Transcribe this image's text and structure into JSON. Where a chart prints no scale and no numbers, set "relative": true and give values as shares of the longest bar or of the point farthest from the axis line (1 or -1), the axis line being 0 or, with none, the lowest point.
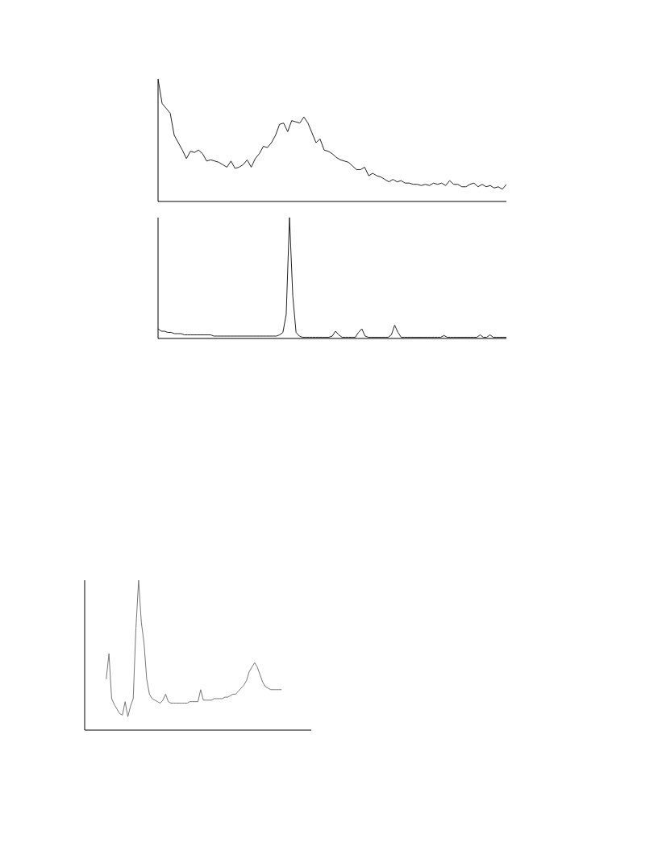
{
  "chart_data": [
    {
      "type": "line",
      "relative": true,
      "categories": [
        null,
        null,
        null,
        null,
        null,
        null,
        null,
        null,
        null,
        null,
        null,
        null,
        null,
        null,
        null,
        null,
        null,
        null,
        null,
        null,
        null,
        null,
        null,
        null,
        null,
        null,
        null,
        null,
        null,
        null,
        null,
        null,
        null,
        null,
        null,
        null,
        null,
        null,
        null,
        null,
        null,
        null,
        null,
        null,
        null,
        null,
        null,
        null,
        null,
        null,
        null,
        null,
        null,
        null,
        null,
        null,
        null,
        null,
        null,
        null,
        null,
        null,
        null,
        null,
        null,
        null,
        null,
        null,
        null,
        null,
        null,
        null,
        null,
        null,
        null,
        null,
        null,
        null,
        null,
        null,
        null,
        null,
        null,
        null,
        null,
        null,
        null
      ],
      "series": [
        {
          "color": "#222222",
          "values": [
            1.0,
            0.8,
            0.76,
            0.72,
            0.54,
            0.48,
            0.42,
            0.35,
            0.41,
            0.4,
            0.42,
            0.39,
            0.33,
            0.34,
            0.33,
            0.32,
            0.3,
            0.28,
            0.33,
            0.27,
            0.28,
            0.3,
            0.34,
            0.28,
            0.35,
            0.39,
            0.45,
            0.44,
            0.48,
            0.54,
            0.63,
            0.64,
            0.57,
            0.66,
            0.65,
            0.64,
            0.69,
            0.64,
            0.56,
            0.48,
            0.51,
            0.42,
            0.41,
            0.39,
            0.36,
            0.34,
            0.33,
            0.32,
            0.29,
            0.26,
            0.26,
            0.28,
            0.21,
            0.23,
            0.21,
            0.2,
            0.18,
            0.16,
            0.18,
            0.16,
            0.17,
            0.15,
            0.15,
            0.14,
            0.14,
            0.13,
            0.14,
            0.13,
            0.15,
            0.14,
            0.15,
            0.13,
            0.17,
            0.14,
            0.14,
            0.12,
            0.12,
            0.14,
            0.15,
            0.12,
            0.14,
            0.12,
            0.13,
            0.11,
            0.12,
            0.1,
            0.14
          ]
        }
      ]
    },
    {
      "type": "line",
      "relative": true,
      "categories": [
        null,
        null,
        null,
        null,
        null,
        null,
        null,
        null,
        null,
        null,
        null,
        null,
        null,
        null,
        null,
        null,
        null,
        null,
        null,
        null,
        null,
        null,
        null,
        null,
        null,
        null,
        null,
        null,
        null,
        null,
        null,
        null,
        null,
        null,
        null,
        null,
        null,
        null,
        null,
        null,
        null,
        null,
        null,
        null,
        null,
        null,
        null,
        null,
        null,
        null,
        null,
        null,
        null,
        null,
        null,
        null,
        null,
        null,
        null,
        null,
        null,
        null,
        null,
        null,
        null,
        null,
        null,
        null,
        null,
        null,
        null,
        null,
        null,
        null,
        null,
        null,
        null,
        null,
        null,
        null,
        null,
        null,
        null,
        null,
        null,
        null,
        null,
        null,
        null,
        null,
        null,
        null,
        null,
        null,
        null,
        null,
        null,
        null,
        null,
        null,
        null,
        null,
        null,
        null,
        null,
        null,
        null
      ],
      "series": [
        {
          "color": "#222222",
          "values": [
            0.08,
            0.06,
            0.06,
            0.05,
            0.05,
            0.04,
            0.04,
            0.04,
            0.03,
            0.03,
            0.03,
            0.03,
            0.03,
            0.03,
            0.03,
            0.03,
            0.03,
            0.02,
            0.02,
            0.02,
            0.02,
            0.02,
            0.02,
            0.02,
            0.02,
            0.02,
            0.02,
            0.02,
            0.02,
            0.02,
            0.02,
            0.02,
            0.02,
            0.02,
            0.02,
            0.02,
            0.02,
            0.03,
            0.05,
            0.2,
            1.0,
            0.35,
            0.05,
            0.02,
            0.01,
            0.01,
            0.01,
            0.01,
            0.01,
            0.01,
            0.01,
            0.01,
            0.01,
            0.02,
            0.06,
            0.03,
            0.01,
            0.01,
            0.01,
            0.01,
            0.01,
            0.05,
            0.08,
            0.02,
            0.01,
            0.01,
            0.01,
            0.01,
            0.01,
            0.01,
            0.01,
            0.03,
            0.11,
            0.05,
            0.01,
            0.01,
            0.01,
            0.01,
            0.01,
            0.01,
            0.01,
            0.01,
            0.01,
            0.01,
            0.01,
            0.01,
            0.01,
            0.025,
            0.01,
            0.01,
            0.01,
            0.01,
            0.01,
            0.01,
            0.01,
            0.01,
            0.01,
            0.01,
            0.03,
            0.01,
            0.01,
            0.03,
            0.01,
            0.01,
            0.01,
            0.01,
            0.01
          ]
        }
      ]
    },
    {
      "type": "line",
      "relative": true,
      "categories": [
        null,
        null,
        null,
        null,
        null,
        null,
        null,
        null,
        null,
        null,
        null,
        null,
        null,
        null,
        null,
        null,
        null,
        null,
        null,
        null,
        null,
        null,
        null,
        null,
        null,
        null,
        null,
        null,
        null,
        null,
        null,
        null,
        null,
        null,
        null,
        null,
        null,
        null,
        null,
        null,
        null,
        null,
        null,
        null,
        null,
        null,
        null,
        null,
        null,
        null,
        null,
        null,
        null,
        null,
        null,
        null,
        null,
        null,
        null,
        null,
        null,
        null,
        null,
        null,
        null,
        null,
        null,
        null,
        null,
        null,
        null,
        null,
        null,
        null,
        null,
        null,
        null,
        null,
        null,
        null,
        null,
        null,
        null,
        null,
        null
      ],
      "series": [
        {
          "color": "#777777",
          "values": [
            null,
            null,
            null,
            null,
            null,
            null,
            null,
            null,
            0.34,
            0.51,
            0.21,
            0.17,
            0.14,
            0.11,
            0.1,
            0.19,
            0.09,
            0.16,
            0.21,
            0.68,
            1.0,
            0.72,
            0.58,
            0.34,
            0.24,
            0.21,
            0.2,
            0.19,
            0.18,
            0.2,
            0.24,
            0.19,
            0.18,
            0.18,
            0.18,
            0.18,
            0.18,
            0.18,
            0.18,
            0.19,
            0.19,
            0.19,
            0.19,
            0.27,
            0.2,
            0.2,
            0.2,
            0.2,
            0.21,
            0.21,
            0.21,
            0.21,
            0.22,
            0.22,
            0.23,
            0.24,
            0.24,
            0.26,
            0.28,
            0.3,
            0.33,
            0.39,
            0.42,
            0.45,
            0.42,
            0.37,
            0.32,
            0.29,
            0.28,
            0.27,
            0.27,
            0.27,
            0.27,
            0.27,
            null,
            null,
            null,
            null,
            null,
            null,
            null,
            null,
            null,
            null,
            null
          ]
        }
      ]
    }
  ]
}
